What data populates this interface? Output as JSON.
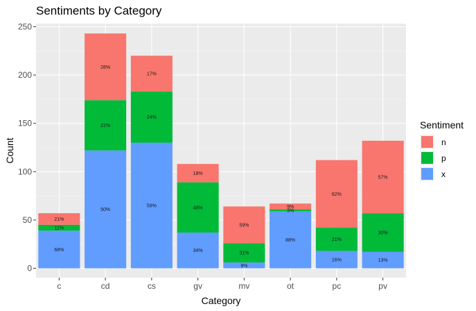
{
  "chart_data": {
    "type": "bar",
    "stacked": true,
    "title": "Sentiments by Category",
    "xlabel": "Category",
    "ylabel": "Count",
    "ylim": [
      0,
      255
    ],
    "yticks": [
      0,
      50,
      100,
      150,
      200,
      250
    ],
    "grid": true,
    "legend_position": "right",
    "legend_title": "Sentiment",
    "categories": [
      "c",
      "cd",
      "cs",
      "gv",
      "mv",
      "ot",
      "pc",
      "pv"
    ],
    "series": [
      {
        "name": "x",
        "color": "#619CFF",
        "values": [
          39,
          122,
          130,
          37,
          6,
          59,
          18,
          17
        ],
        "labels": [
          "68%",
          "50%",
          "59%",
          "34%",
          "9%",
          "88%",
          "16%",
          "13%"
        ]
      },
      {
        "name": "p",
        "color": "#00BA38",
        "values": [
          6,
          52,
          53,
          52,
          20,
          2,
          24,
          40
        ],
        "labels": [
          "11%",
          "21%",
          "24%",
          "48%",
          "31%",
          "3%",
          "21%",
          "30%"
        ]
      },
      {
        "name": "n",
        "color": "#F8766D",
        "values": [
          12,
          69,
          37,
          19,
          38,
          6,
          70,
          75
        ],
        "labels": [
          "21%",
          "28%",
          "17%",
          "18%",
          "59%",
          "9%",
          "62%",
          "57%"
        ]
      }
    ]
  }
}
